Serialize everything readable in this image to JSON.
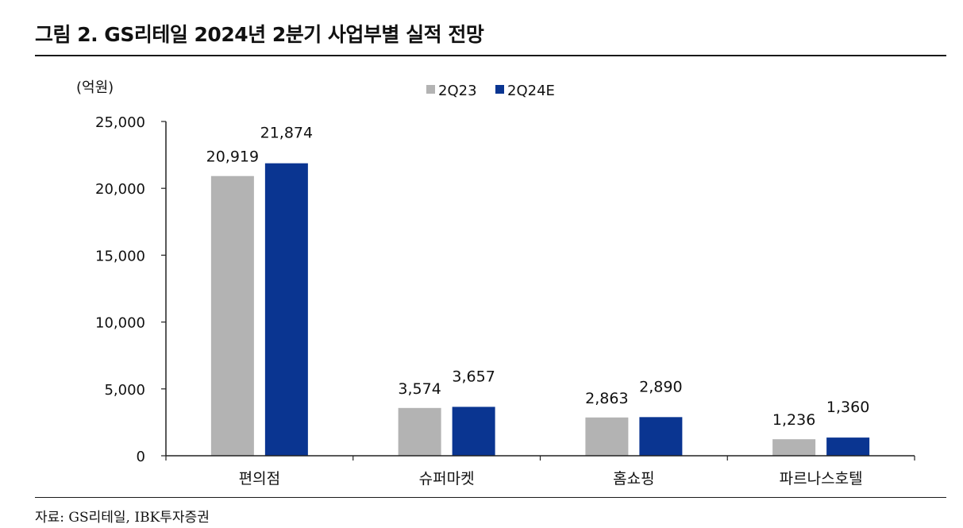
{
  "title": "그림 2. GS리테일 2024년 2분기 사업부별 실적 전망",
  "source": "자료: GS리테일, IBK투자증권",
  "chart_data": {
    "type": "bar",
    "unit_label": "(억원)",
    "categories": [
      "편의점",
      "슈퍼마켓",
      "홈쇼핑",
      "파르나스호텔"
    ],
    "series": [
      {
        "name": "2Q23",
        "color": "#b3b3b3",
        "values": [
          20919,
          3574,
          2863,
          1236
        ],
        "labels": [
          "20,919",
          "3,574",
          "2,863",
          "1,236"
        ]
      },
      {
        "name": "2Q24E",
        "color": "#0a3591",
        "values": [
          21874,
          3657,
          2890,
          1360
        ],
        "labels": [
          "21,874",
          "3,657",
          "2,890",
          "1,360"
        ]
      }
    ],
    "ylim": [
      0,
      25000
    ],
    "yticks": [
      0,
      5000,
      10000,
      15000,
      20000,
      25000
    ],
    "ytick_labels": [
      "0",
      "5,000",
      "10,000",
      "15,000",
      "20,000",
      "25,000"
    ],
    "legend_position": "top-center",
    "grid": false
  }
}
